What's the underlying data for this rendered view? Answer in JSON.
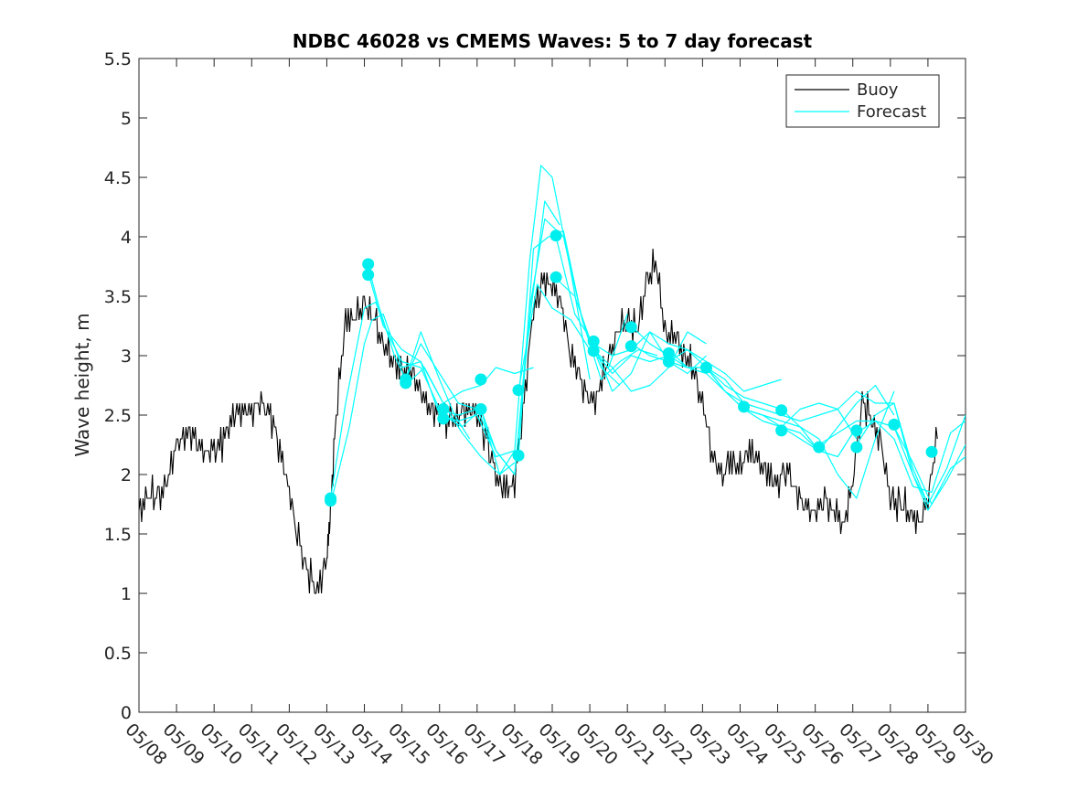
{
  "chart_data": {
    "type": "line",
    "title": "NDBC 46028 vs CMEMS Waves: 5 to 7 day forecast",
    "xlabel": "",
    "ylabel": "Wave height, m",
    "ylim": [
      0,
      5.5
    ],
    "yticks": [
      "0",
      "0.5",
      "1",
      "1.5",
      "2",
      "2.5",
      "3",
      "3.5",
      "4",
      "4.5",
      "5",
      "5.5"
    ],
    "xlim_day": [
      8,
      30
    ],
    "xticks": [
      "05/08",
      "05/09",
      "05/10",
      "05/11",
      "05/12",
      "05/13",
      "05/14",
      "05/15",
      "05/16",
      "05/17",
      "05/18",
      "05/19",
      "05/20",
      "05/21",
      "05/22",
      "05/23",
      "05/24",
      "05/25",
      "05/26",
      "05/27",
      "05/28",
      "05/29",
      "05/30"
    ],
    "legend_position": "top-right",
    "grid": false,
    "colors": {
      "buoy": "#000000",
      "forecast": "#00ffff",
      "marker": "#00eeee"
    },
    "series": [
      {
        "name": "Buoy",
        "x": [
          8.0,
          8.25,
          8.5,
          8.75,
          9.0,
          9.25,
          9.5,
          9.75,
          10.0,
          10.25,
          10.5,
          10.75,
          11.0,
          11.25,
          11.5,
          11.75,
          12.0,
          12.25,
          12.5,
          12.75,
          13.0,
          13.1,
          13.25,
          13.5,
          13.75,
          14.0,
          14.25,
          14.5,
          14.75,
          15.0,
          15.25,
          15.5,
          15.75,
          16.0,
          16.25,
          16.5,
          16.75,
          17.0,
          17.25,
          17.5,
          17.75,
          18.0,
          18.25,
          18.5,
          18.75,
          19.0,
          19.25,
          19.5,
          19.75,
          20.0,
          20.25,
          20.5,
          20.75,
          21.0,
          21.25,
          21.5,
          21.75,
          22.0,
          22.25,
          22.5,
          22.75,
          23.0,
          23.25,
          23.5,
          23.75,
          24.0,
          24.25,
          24.5,
          24.75,
          25.0,
          25.25,
          25.5,
          25.75,
          26.0,
          26.25,
          26.5,
          26.75,
          27.0,
          27.25,
          27.5,
          27.75,
          28.0,
          28.25,
          28.5,
          28.75,
          29.0,
          29.25
        ],
        "y": [
          1.7,
          1.85,
          1.8,
          1.95,
          2.25,
          2.35,
          2.3,
          2.2,
          2.2,
          2.3,
          2.5,
          2.55,
          2.55,
          2.6,
          2.5,
          2.2,
          1.85,
          1.45,
          1.2,
          1.02,
          1.3,
          1.7,
          2.5,
          3.3,
          3.35,
          3.45,
          3.3,
          3.1,
          2.95,
          2.9,
          2.85,
          2.7,
          2.55,
          2.5,
          2.45,
          2.5,
          2.55,
          2.5,
          2.3,
          2.0,
          1.85,
          1.9,
          2.6,
          3.4,
          3.6,
          3.6,
          3.4,
          3.0,
          2.8,
          2.6,
          2.7,
          3.0,
          3.2,
          3.3,
          3.2,
          3.6,
          3.8,
          3.2,
          3.2,
          3.0,
          2.9,
          2.6,
          2.2,
          2.0,
          2.1,
          2.05,
          2.2,
          2.1,
          2.0,
          1.95,
          2.05,
          1.85,
          1.7,
          1.7,
          1.8,
          1.7,
          1.55,
          1.95,
          2.6,
          2.5,
          2.25,
          1.8,
          1.75,
          1.7,
          1.6,
          1.8,
          2.3
        ]
      },
      {
        "name": "Forecast",
        "runs": [
          {
            "x": [
              13.1,
              13.5,
              14.0,
              14.3,
              14.6,
              15.0,
              15.5,
              16.0,
              16.5,
              17.0
            ],
            "y": [
              1.8,
              2.6,
              3.4,
              3.45,
              3.2,
              2.95,
              2.9,
              2.55,
              2.5,
              2.55
            ]
          },
          {
            "x": [
              13.1,
              13.6,
              14.0,
              14.2,
              14.5,
              15.0,
              15.5,
              16.0,
              16.5,
              17.0,
              17.5,
              18.0
            ],
            "y": [
              1.75,
              2.4,
              3.1,
              3.3,
              3.35,
              2.9,
              2.95,
              2.5,
              2.45,
              2.5,
              2.15,
              2.2
            ]
          },
          {
            "x": [
              14.1,
              14.4,
              14.8,
              15.1,
              15.5,
              16.0,
              16.4,
              16.8
            ],
            "y": [
              3.75,
              3.4,
              3.0,
              2.8,
              3.2,
              2.8,
              2.5,
              2.3
            ]
          },
          {
            "x": [
              14.1,
              14.5,
              15.0,
              15.5,
              16.1,
              16.6,
              17.1,
              17.6,
              18.0
            ],
            "y": [
              3.7,
              3.25,
              3.05,
              2.95,
              2.6,
              2.35,
              2.15,
              2.0,
              2.1
            ]
          },
          {
            "x": [
              15.1,
              15.5,
              16.0,
              16.5,
              17.0,
              17.5,
              18.0,
              18.4,
              18.8,
              19.2
            ],
            "y": [
              2.8,
              3.1,
              2.85,
              2.6,
              2.55,
              2.2,
              2.0,
              3.3,
              4.3,
              4.1
            ]
          },
          {
            "x": [
              15.1,
              15.6,
              16.1,
              16.6,
              17.1,
              17.5,
              18.0,
              18.5
            ],
            "y": [
              2.75,
              2.9,
              2.6,
              2.7,
              2.75,
              2.9,
              2.85,
              2.9
            ]
          },
          {
            "x": [
              16.1,
              16.6,
              17.1,
              17.6,
              18.0,
              18.4,
              18.7,
              19.0,
              19.5,
              20.0
            ],
            "y": [
              2.5,
              2.4,
              2.55,
              2.0,
              2.2,
              3.8,
              4.6,
              4.5,
              3.7,
              2.8
            ]
          },
          {
            "x": [
              17.1,
              17.5,
              18.0,
              18.4,
              18.8,
              19.3,
              19.8,
              20.3,
              20.8
            ],
            "y": [
              2.55,
              2.2,
              2.0,
              3.4,
              4.15,
              4.0,
              3.3,
              2.9,
              2.75
            ]
          },
          {
            "x": [
              18.1,
              18.5,
              18.9,
              19.3,
              19.8,
              20.3,
              20.8,
              21.3,
              21.8
            ],
            "y": [
              2.15,
              3.9,
              4.0,
              4.05,
              3.3,
              2.8,
              2.95,
              3.05,
              3.0
            ]
          },
          {
            "x": [
              18.1,
              18.6,
              19.0,
              19.5,
              20.0,
              20.5,
              21.0
            ],
            "y": [
              2.7,
              3.6,
              3.4,
              3.3,
              3.05,
              2.9,
              3.35
            ]
          },
          {
            "x": [
              19.1,
              19.6,
              20.1,
              20.6,
              21.1,
              21.6,
              22.1,
              22.6,
              23.1
            ],
            "y": [
              4.0,
              3.35,
              3.1,
              2.7,
              2.85,
              3.2,
              2.95,
              2.85,
              3.0
            ]
          },
          {
            "x": [
              19.1,
              19.6,
              20.1,
              20.6,
              21.1,
              21.6,
              22.1
            ],
            "y": [
              3.65,
              3.5,
              3.05,
              2.85,
              3.0,
              2.95,
              3.0
            ]
          },
          {
            "x": [
              20.1,
              20.6,
              21.1,
              21.6,
              22.1,
              22.6,
              23.1,
              23.6,
              24.1
            ],
            "y": [
              3.1,
              3.0,
              3.05,
              3.2,
              3.1,
              3.05,
              2.9,
              2.8,
              2.6
            ]
          },
          {
            "x": [
              20.1,
              20.6,
              21.1,
              21.6,
              22.1,
              22.6,
              23.1
            ],
            "y": [
              3.05,
              2.9,
              2.7,
              2.75,
              2.9,
              3.2,
              3.1
            ]
          },
          {
            "x": [
              21.1,
              21.6,
              22.1,
              22.6,
              23.1,
              23.6,
              24.1,
              24.6,
              25.1
            ],
            "y": [
              3.25,
              3.1,
              3.0,
              2.9,
              2.9,
              2.75,
              2.65,
              2.6,
              2.55
            ]
          },
          {
            "x": [
              21.1,
              21.6,
              22.1,
              22.6,
              23.1,
              23.6,
              24.1,
              24.6,
              25.1
            ],
            "y": [
              3.1,
              3.0,
              2.95,
              3.05,
              2.95,
              2.85,
              2.7,
              2.75,
              2.8
            ]
          },
          {
            "x": [
              22.1,
              22.6,
              23.1,
              23.6,
              24.1,
              24.6,
              25.1,
              25.6,
              26.1
            ],
            "y": [
              3.05,
              2.9,
              2.9,
              2.7,
              2.55,
              2.5,
              2.4,
              2.3,
              2.2
            ]
          },
          {
            "x": [
              22.1,
              22.6,
              23.1,
              23.6,
              24.1,
              24.6,
              25.1,
              25.6,
              26.1,
              26.6,
              27.1
            ],
            "y": [
              2.95,
              2.9,
              2.85,
              2.7,
              2.6,
              2.55,
              2.5,
              2.45,
              2.5,
              2.55,
              2.3
            ]
          },
          {
            "x": [
              23.1,
              23.6,
              24.1,
              24.6,
              25.1,
              25.6,
              26.1,
              26.6,
              27.1
            ],
            "y": [
              2.9,
              2.7,
              2.55,
              2.45,
              2.4,
              2.35,
              2.2,
              2.15,
              2.4
            ]
          },
          {
            "x": [
              24.1,
              24.6,
              25.1,
              25.6,
              26.1,
              26.6,
              27.1,
              27.6,
              28.1
            ],
            "y": [
              2.55,
              2.5,
              2.45,
              2.4,
              2.3,
              2.0,
              1.8,
              2.3,
              2.7
            ]
          },
          {
            "x": [
              25.1,
              25.6,
              26.1,
              26.6,
              27.1,
              27.6,
              28.1
            ],
            "y": [
              2.55,
              2.4,
              2.2,
              2.4,
              2.6,
              2.75,
              2.5
            ]
          },
          {
            "x": [
              25.1,
              25.6,
              26.1,
              26.6,
              27.1,
              27.6,
              28.1,
              28.6,
              29.0
            ],
            "y": [
              2.4,
              2.55,
              2.6,
              2.55,
              2.7,
              2.6,
              2.6,
              2.0,
              1.75
            ]
          },
          {
            "x": [
              26.1,
              26.6,
              27.1,
              27.6,
              28.1,
              28.6,
              29.0,
              29.5,
              30.0
            ],
            "y": [
              2.25,
              2.35,
              2.45,
              2.45,
              2.4,
              2.0,
              1.7,
              1.95,
              2.25
            ]
          },
          {
            "x": [
              27.1,
              27.6,
              28.1,
              28.6,
              29.0,
              29.5,
              30.0
            ],
            "y": [
              2.25,
              2.5,
              2.6,
              2.05,
              1.75,
              2.05,
              2.5
            ]
          },
          {
            "x": [
              27.1,
              27.6,
              28.1,
              28.6,
              29.1,
              29.6,
              30.0
            ],
            "y": [
              2.35,
              2.45,
              2.3,
              1.9,
              1.85,
              2.35,
              2.45
            ]
          },
          {
            "x": [
              28.1,
              28.6,
              29.1,
              29.6,
              30.0
            ],
            "y": [
              2.4,
              2.1,
              1.75,
              2.05,
              2.15
            ]
          }
        ]
      }
    ],
    "markers": [
      {
        "x": 13.1,
        "y": 1.8
      },
      {
        "x": 13.1,
        "y": 1.78
      },
      {
        "x": 14.1,
        "y": 3.77
      },
      {
        "x": 14.1,
        "y": 3.68
      },
      {
        "x": 15.1,
        "y": 2.8
      },
      {
        "x": 15.1,
        "y": 2.77
      },
      {
        "x": 16.1,
        "y": 2.55
      },
      {
        "x": 16.1,
        "y": 2.47
      },
      {
        "x": 17.1,
        "y": 2.8
      },
      {
        "x": 17.1,
        "y": 2.55
      },
      {
        "x": 18.1,
        "y": 2.71
      },
      {
        "x": 18.1,
        "y": 2.16
      },
      {
        "x": 19.1,
        "y": 4.01
      },
      {
        "x": 19.1,
        "y": 3.66
      },
      {
        "x": 20.1,
        "y": 3.12
      },
      {
        "x": 20.1,
        "y": 3.04
      },
      {
        "x": 21.1,
        "y": 3.24
      },
      {
        "x": 21.1,
        "y": 3.08
      },
      {
        "x": 22.1,
        "y": 3.02
      },
      {
        "x": 22.1,
        "y": 2.95
      },
      {
        "x": 23.1,
        "y": 2.9
      },
      {
        "x": 24.1,
        "y": 2.57
      },
      {
        "x": 25.1,
        "y": 2.54
      },
      {
        "x": 25.1,
        "y": 2.37
      },
      {
        "x": 26.1,
        "y": 2.23
      },
      {
        "x": 27.1,
        "y": 2.37
      },
      {
        "x": 27.1,
        "y": 2.23
      },
      {
        "x": 28.1,
        "y": 2.42
      },
      {
        "x": 29.1,
        "y": 2.19
      }
    ]
  }
}
